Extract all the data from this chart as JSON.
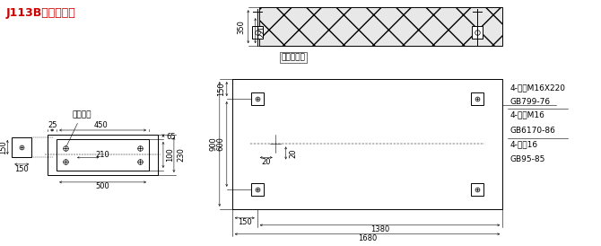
{
  "title": "J113B基础安装图",
  "title_color": "#cc0000",
  "bg_color": "#ffffff",
  "font_size_title": 9,
  "font_size_label": 6.5,
  "font_size_dim": 6,
  "annotations_right": [
    "4-螺栓M16X220",
    "GB799-76",
    "4-螺母M16",
    "GB6170-86",
    "4-垫圈16",
    "GB95-85"
  ],
  "label_concrete": "优质混凝土",
  "label_power": "电源进口"
}
